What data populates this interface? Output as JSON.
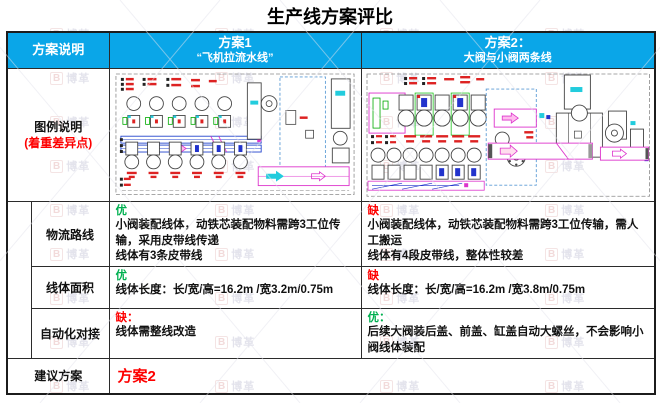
{
  "page": {
    "title": "生产线方案评比",
    "watermark_text": "博革",
    "watermark_logo": "B"
  },
  "colors": {
    "header_bg": "#0aa6e8",
    "header_text": "#ffffff",
    "pro_green": "#00b050",
    "con_red": "#fe0000",
    "recommendation_red": "#fe0000",
    "border": "#2b2b2b"
  },
  "table": {
    "header": {
      "label_col": "方案说明",
      "scheme1_title": "方案1",
      "scheme1_subtitle": "“飞机拉流水线”",
      "scheme2_title": "方案2：",
      "scheme2_subtitle": "大阀与小阀两条线"
    },
    "legend_row": {
      "label_line1": "图例说明",
      "label_line2": "(着重差异点)"
    },
    "logistics_row": {
      "label": "物流路线",
      "scheme1": {
        "tag": "优",
        "line1": "小阀装配线体，动铁芯装配物料需跨3工位传输，采用皮带线传递",
        "line2": "线体有3条皮带线"
      },
      "scheme2": {
        "tag": "缺",
        "line1": "小阀装配线体，动铁芯装配物料需跨3工位传输，需人工搬运",
        "line2": "线体有4段皮带线，整体性较差"
      }
    },
    "area_row": {
      "label": "线体面积",
      "scheme1": {
        "tag": "优",
        "line1": "线体长度：长/宽/高=16.2m /宽3.2m/0.75m"
      },
      "scheme2": {
        "tag": "缺",
        "line1": "线体长度：长/宽/高=16.2m /宽3.8m/0.75m"
      }
    },
    "automation_row": {
      "label": "自动化对接",
      "scheme1": {
        "tag": "缺：",
        "line1": "线体需整线改造"
      },
      "scheme2": {
        "tag": "优：",
        "line1": "后续大阀装后盖、前盖、缸盖自动大螺丝，不会影响小阀线体装配"
      }
    },
    "recommendation_row": {
      "label": "建议方案",
      "value": "方案2"
    }
  }
}
